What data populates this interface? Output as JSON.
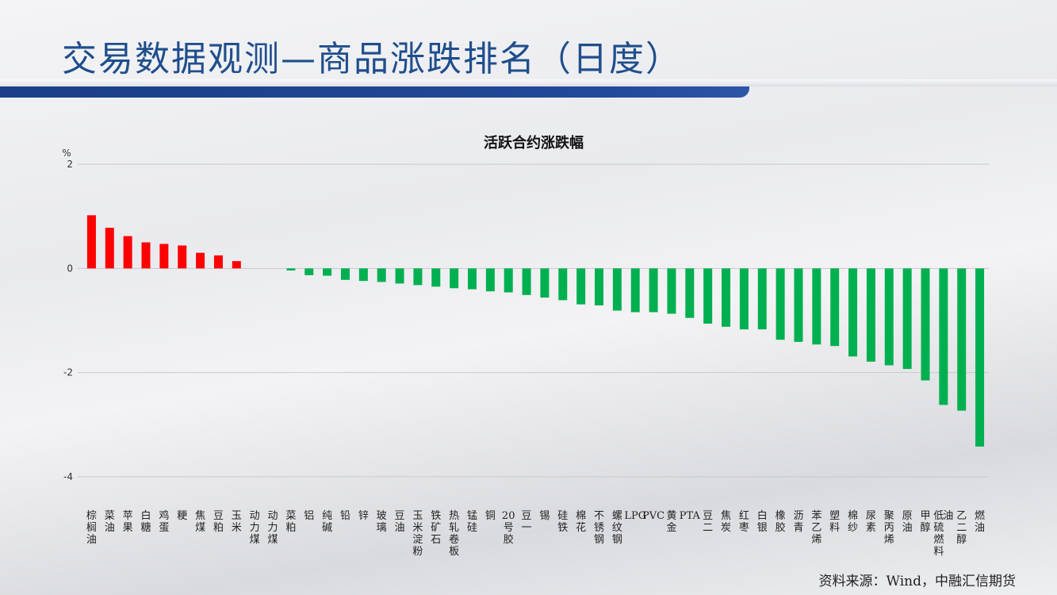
{
  "page": {
    "title": "交易数据观测—商品涨跌排名（日度）",
    "source": "资料来源：Wind，中融汇信期货"
  },
  "colors": {
    "up": "#ff0000",
    "down": "#00b050",
    "title": "#1f4e8c",
    "bar": "#1a3f86"
  },
  "chart_data": {
    "type": "bar",
    "title": "活跃合约涨跌幅",
    "ylabel": "%",
    "ylim": [
      -4,
      2
    ],
    "yticks": [
      2,
      0,
      -2,
      -4
    ],
    "grid": true,
    "categories": [
      "棕榈油",
      "菜油",
      "苹果",
      "白糖",
      "鸡蛋",
      "粳",
      "焦煤",
      "豆粕",
      "玉米",
      "动力煤",
      "动力煤",
      "菜粕",
      "铝",
      "纯碱",
      "铅",
      "锌",
      "玻璃",
      "豆油",
      "玉米淀粉",
      "铁矿石",
      "热轧卷板",
      "锰硅",
      "铜",
      "20号胶",
      "豆一",
      "锡",
      "硅铁",
      "棉花",
      "不锈钢",
      "螺纹钢",
      "LPG",
      "PVC",
      "黄金",
      "PTA",
      "豆二",
      "焦炭",
      "红枣",
      "白银",
      "橡胶",
      "沥青",
      "苯乙烯",
      "塑料",
      "棉纱",
      "尿素",
      "聚丙烯",
      "原油",
      "甲醇",
      "低硫燃料油",
      "乙二醇",
      "燃油"
    ],
    "values": [
      1.02,
      0.78,
      0.62,
      0.5,
      0.47,
      0.44,
      0.3,
      0.25,
      0.14,
      0.0,
      0.0,
      -0.04,
      -0.13,
      -0.14,
      -0.22,
      -0.24,
      -0.26,
      -0.29,
      -0.32,
      -0.35,
      -0.38,
      -0.4,
      -0.44,
      -0.46,
      -0.51,
      -0.56,
      -0.61,
      -0.69,
      -0.71,
      -0.81,
      -0.84,
      -0.84,
      -0.87,
      -0.95,
      -1.06,
      -1.12,
      -1.17,
      -1.17,
      -1.37,
      -1.41,
      -1.46,
      -1.49,
      -1.69,
      -1.79,
      -1.86,
      -1.93,
      -2.15,
      -2.62,
      -2.73,
      -3.42
    ]
  }
}
